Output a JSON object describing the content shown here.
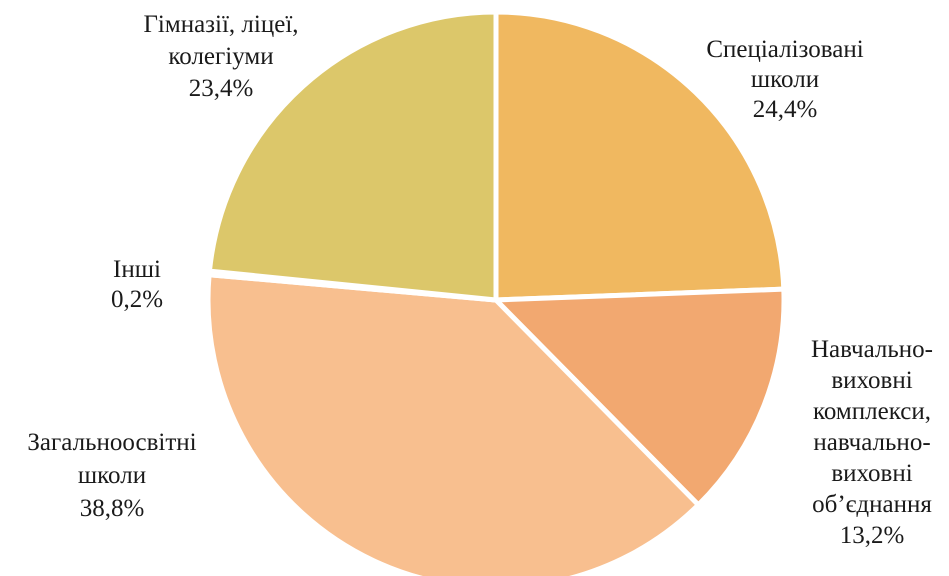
{
  "chart_data": {
    "type": "pie",
    "start": "top",
    "direction": "clockwise",
    "slices": [
      {
        "label_lines": [
          "Спеціалізовані",
          "школи"
        ],
        "value_text": "24,4%",
        "value": 24.4,
        "color": "#F0B860"
      },
      {
        "label_lines": [
          "Навчально-",
          "виховні",
          "комплекси,",
          "навчально-",
          "виховні",
          "об’єднання"
        ],
        "value_text": "13,2%",
        "value": 13.2,
        "color": "#F2A870"
      },
      {
        "label_lines": [
          "Загальноосвітні",
          "школи"
        ],
        "value_text": "38,8%",
        "value": 38.8,
        "color": "#F8BF8F"
      },
      {
        "label_lines": [
          "Інші"
        ],
        "value_text": "0,2%",
        "value": 0.2,
        "color": "#D9BC62"
      },
      {
        "label_lines": [
          "Гімназії, ліцеї,",
          "колегіуми"
        ],
        "value_text": "23,4%",
        "value": 23.4,
        "color": "#DCC76A"
      }
    ]
  }
}
